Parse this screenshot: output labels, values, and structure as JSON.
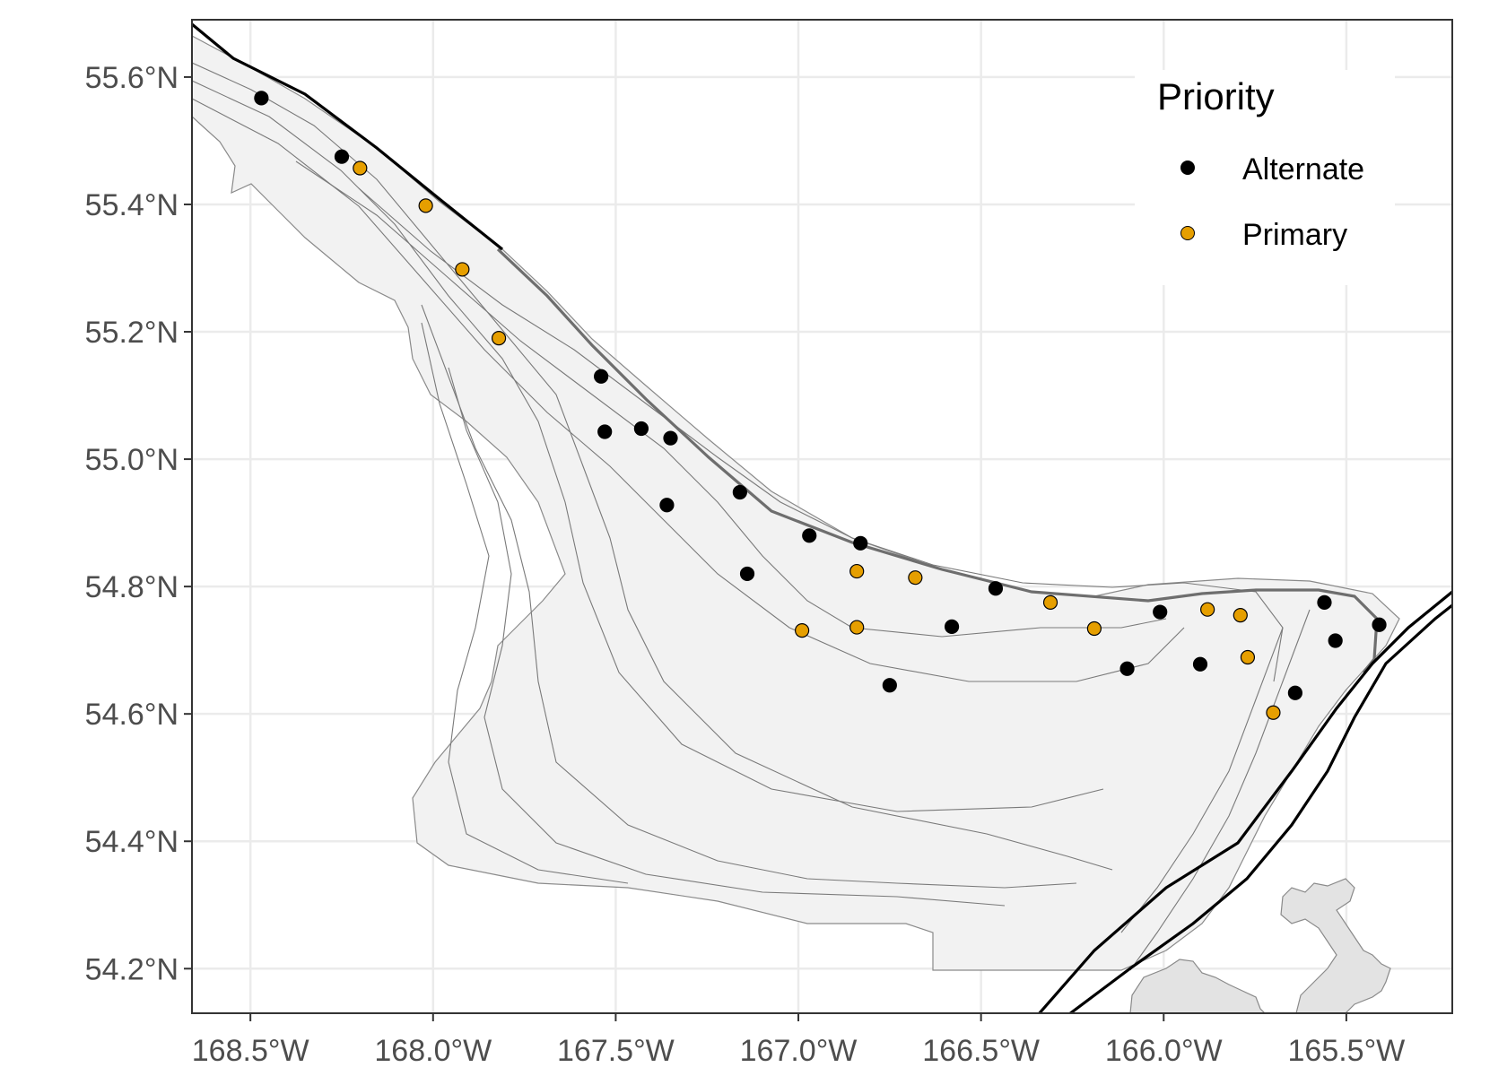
{
  "legend": {
    "title": "Priority",
    "items": [
      {
        "label": "Alternate",
        "color": "#000000"
      },
      {
        "label": "Primary",
        "color": "#E69F00"
      }
    ]
  },
  "axes": {
    "x_ticks": [
      {
        "value": -168.5,
        "label": "168.5°W"
      },
      {
        "value": -168.0,
        "label": "168.0°W"
      },
      {
        "value": -167.5,
        "label": "167.5°W"
      },
      {
        "value": -167.0,
        "label": "167.0°W"
      },
      {
        "value": -166.5,
        "label": "166.5°W"
      },
      {
        "value": -166.0,
        "label": "166.0°W"
      },
      {
        "value": -165.5,
        "label": "165.5°W"
      }
    ],
    "y_ticks": [
      {
        "value": 55.6,
        "label": "55.6°N"
      },
      {
        "value": 55.4,
        "label": "55.4°N"
      },
      {
        "value": 55.2,
        "label": "55.2°N"
      },
      {
        "value": 55.0,
        "label": "55.0°N"
      },
      {
        "value": 54.8,
        "label": "54.8°N"
      },
      {
        "value": 54.6,
        "label": "54.6°N"
      },
      {
        "value": 54.4,
        "label": "54.4°N"
      },
      {
        "value": 54.2,
        "label": "54.2°N"
      }
    ],
    "xlim": [
      -168.66,
      -165.21
    ],
    "ylim": [
      54.13,
      55.69
    ]
  },
  "colors": {
    "alternate": "#000000",
    "primary": "#E69F00",
    "grid": "#ebebeb",
    "region_fill": "#f2f2f2",
    "contour": "#7a7a7a",
    "land": "#e3e3e3"
  },
  "chart_data": {
    "type": "scatter",
    "series": [
      {
        "name": "Alternate",
        "points": [
          {
            "x": -168.47,
            "y": 55.567
          },
          {
            "x": -168.25,
            "y": 55.475
          },
          {
            "x": -167.54,
            "y": 55.13
          },
          {
            "x": -167.53,
            "y": 55.043
          },
          {
            "x": -167.43,
            "y": 55.048
          },
          {
            "x": -167.35,
            "y": 55.033
          },
          {
            "x": -167.36,
            "y": 54.928
          },
          {
            "x": -167.16,
            "y": 54.948
          },
          {
            "x": -167.14,
            "y": 54.82
          },
          {
            "x": -166.97,
            "y": 54.88
          },
          {
            "x": -166.83,
            "y": 54.868
          },
          {
            "x": -166.75,
            "y": 54.645
          },
          {
            "x": -166.58,
            "y": 54.737
          },
          {
            "x": -166.46,
            "y": 54.797
          },
          {
            "x": -166.1,
            "y": 54.671
          },
          {
            "x": -166.01,
            "y": 54.76
          },
          {
            "x": -165.9,
            "y": 54.678
          },
          {
            "x": -165.64,
            "y": 54.633
          },
          {
            "x": -165.56,
            "y": 54.775
          },
          {
            "x": -165.53,
            "y": 54.715
          },
          {
            "x": -165.41,
            "y": 54.74
          }
        ]
      },
      {
        "name": "Primary",
        "points": [
          {
            "x": -168.2,
            "y": 55.457
          },
          {
            "x": -168.02,
            "y": 55.398
          },
          {
            "x": -167.92,
            "y": 55.298
          },
          {
            "x": -167.82,
            "y": 55.19
          },
          {
            "x": -166.99,
            "y": 54.731
          },
          {
            "x": -166.84,
            "y": 54.736
          },
          {
            "x": -166.84,
            "y": 54.824
          },
          {
            "x": -166.68,
            "y": 54.814
          },
          {
            "x": -166.31,
            "y": 54.775
          },
          {
            "x": -166.19,
            "y": 54.734
          },
          {
            "x": -165.88,
            "y": 54.764
          },
          {
            "x": -165.79,
            "y": 54.755
          },
          {
            "x": -165.77,
            "y": 54.689
          },
          {
            "x": -165.7,
            "y": 54.602
          }
        ]
      }
    ]
  }
}
